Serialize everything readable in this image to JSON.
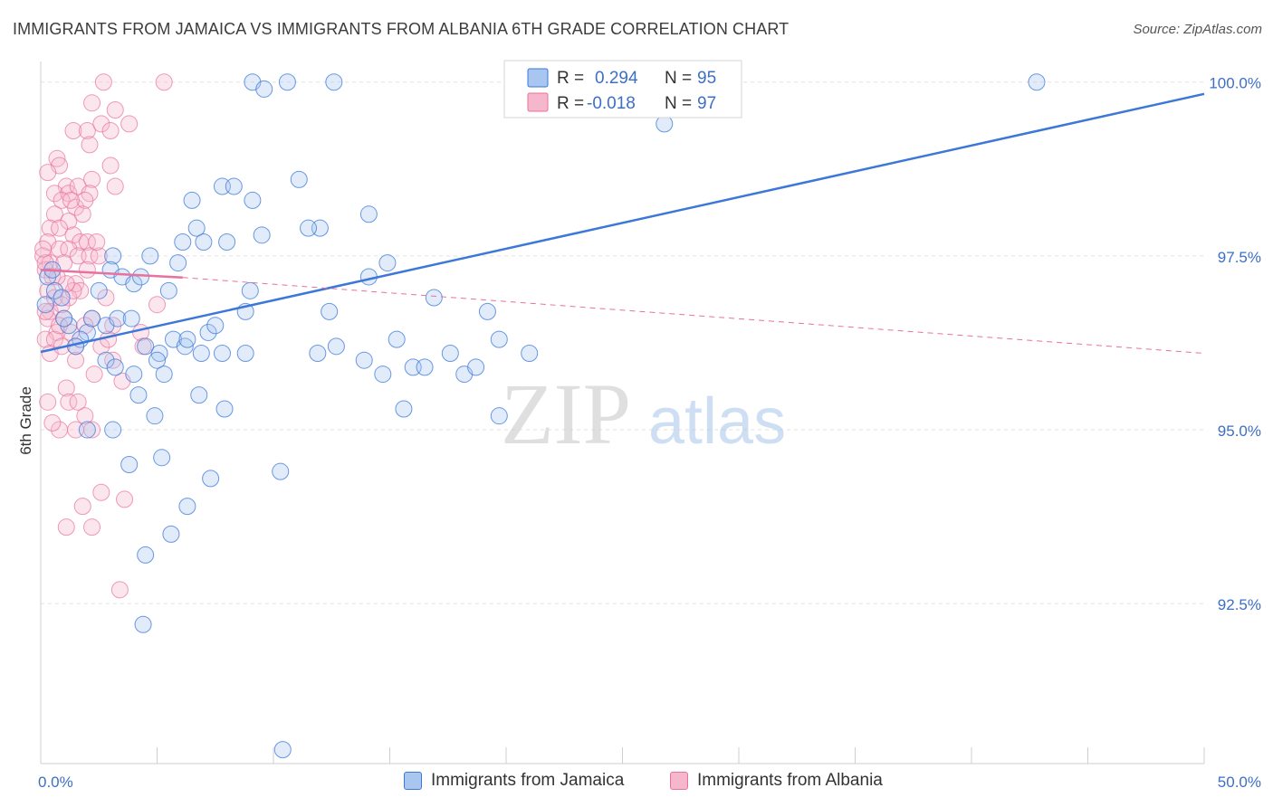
{
  "title": "IMMIGRANTS FROM JAMAICA VS IMMIGRANTS FROM ALBANIA 6TH GRADE CORRELATION CHART",
  "source": "Source: ZipAtlas.com",
  "watermark": {
    "zip": "ZIP",
    "atlas": "atlas"
  },
  "colors": {
    "blue": "#3b78d8",
    "blue_fill": "#a9c6f0",
    "pink": "#e8719d",
    "pink_fill": "#f6b6cb",
    "tick": "#3d6fc4",
    "grid": "#e2e2e2"
  },
  "legend": {
    "rows": [
      {
        "r_label": "R =",
        "r_value": "0.294",
        "n_label": "N =",
        "n_value": "95"
      },
      {
        "r_label": "R =",
        "r_value": "-0.018",
        "n_label": "N =",
        "n_value": "97"
      }
    ]
  },
  "bottom_legend": {
    "series_a": "Immigrants from Jamaica",
    "series_b": "Immigrants from Albania"
  },
  "chart_data": {
    "type": "scatter",
    "title": "IMMIGRANTS FROM JAMAICA VS IMMIGRANTS FROM ALBANIA 6TH GRADE CORRELATION CHART",
    "xlabel": "",
    "ylabel": "6th Grade",
    "xlim": [
      0,
      50
    ],
    "ylim": [
      90.2,
      100.4
    ],
    "x_tick_labels": [
      {
        "value": 0,
        "label": "0.0%"
      },
      {
        "value": 50,
        "label": "50.0%"
      }
    ],
    "y_tick_labels": [
      {
        "value": 100.0,
        "label": "100.0%"
      },
      {
        "value": 97.5,
        "label": "97.5%"
      },
      {
        "value": 95.0,
        "label": "95.0%"
      },
      {
        "value": 92.5,
        "label": "92.5%"
      }
    ],
    "series": [
      {
        "name": "Immigrants from Jamaica",
        "r": 0.294,
        "n": 95,
        "trend": {
          "x": [
            0,
            50
          ],
          "y": [
            96.12,
            99.83
          ],
          "style": "solid"
        },
        "points": [
          [
            9.1,
            100
          ],
          [
            9.6,
            99.9
          ],
          [
            10.6,
            100
          ],
          [
            12.6,
            100
          ],
          [
            20.4,
            100
          ],
          [
            21.7,
            100
          ],
          [
            26.8,
            99.4
          ],
          [
            42.8,
            100
          ],
          [
            7.8,
            98.5
          ],
          [
            9.1,
            98.3
          ],
          [
            8.3,
            98.5
          ],
          [
            11.1,
            98.6
          ],
          [
            14.1,
            98.1
          ],
          [
            6.5,
            98.3
          ],
          [
            12.0,
            97.9
          ],
          [
            11.5,
            97.9
          ],
          [
            6.7,
            97.9
          ],
          [
            8.0,
            97.7
          ],
          [
            9.5,
            97.8
          ],
          [
            6.1,
            97.7
          ],
          [
            7.0,
            97.7
          ],
          [
            4.7,
            97.5
          ],
          [
            5.9,
            97.4
          ],
          [
            3.1,
            97.5
          ],
          [
            3.0,
            97.3
          ],
          [
            3.5,
            97.2
          ],
          [
            4.0,
            97.1
          ],
          [
            4.3,
            97.2
          ],
          [
            0.3,
            97.2
          ],
          [
            0.5,
            97.3
          ],
          [
            0.6,
            97.0
          ],
          [
            0.9,
            96.9
          ],
          [
            0.2,
            96.8
          ],
          [
            9.0,
            97.0
          ],
          [
            8.8,
            96.7
          ],
          [
            14.9,
            97.4
          ],
          [
            14.1,
            97.2
          ],
          [
            16.9,
            96.9
          ],
          [
            12.4,
            96.7
          ],
          [
            19.2,
            96.7
          ],
          [
            1.2,
            96.5
          ],
          [
            2.0,
            96.4
          ],
          [
            1.7,
            96.3
          ],
          [
            2.8,
            96.5
          ],
          [
            3.3,
            96.6
          ],
          [
            3.9,
            96.6
          ],
          [
            1.5,
            96.2
          ],
          [
            4.5,
            96.2
          ],
          [
            5.7,
            96.3
          ],
          [
            6.2,
            96.2
          ],
          [
            6.3,
            96.3
          ],
          [
            7.2,
            96.4
          ],
          [
            7.5,
            96.5
          ],
          [
            7.8,
            96.1
          ],
          [
            5.1,
            96.1
          ],
          [
            5.0,
            96.0
          ],
          [
            8.8,
            96.1
          ],
          [
            12.7,
            96.2
          ],
          [
            15.3,
            96.3
          ],
          [
            19.7,
            96.3
          ],
          [
            2.8,
            96.0
          ],
          [
            3.2,
            95.9
          ],
          [
            4.0,
            95.8
          ],
          [
            5.3,
            95.8
          ],
          [
            13.9,
            96.0
          ],
          [
            14.7,
            95.8
          ],
          [
            16.0,
            95.9
          ],
          [
            16.5,
            95.9
          ],
          [
            18.2,
            95.8
          ],
          [
            18.7,
            95.9
          ],
          [
            4.2,
            95.5
          ],
          [
            6.8,
            95.5
          ],
          [
            7.9,
            95.3
          ],
          [
            15.6,
            95.3
          ],
          [
            19.7,
            95.2
          ],
          [
            4.9,
            95.2
          ],
          [
            2.0,
            95.0
          ],
          [
            3.1,
            95.0
          ],
          [
            3.8,
            94.5
          ],
          [
            5.2,
            94.6
          ],
          [
            10.3,
            94.4
          ],
          [
            7.3,
            94.3
          ],
          [
            6.3,
            93.9
          ],
          [
            5.6,
            93.5
          ],
          [
            4.5,
            93.2
          ],
          [
            4.4,
            92.2
          ],
          [
            10.4,
            90.4
          ],
          [
            2.5,
            97.0
          ],
          [
            1.0,
            96.6
          ],
          [
            2.2,
            96.6
          ],
          [
            6.9,
            96.1
          ],
          [
            11.9,
            96.1
          ],
          [
            17.6,
            96.1
          ],
          [
            21.0,
            96.1
          ],
          [
            5.5,
            97.0
          ]
        ]
      },
      {
        "name": "Immigrants from Albania",
        "r": -0.018,
        "n": 97,
        "trend_solid": {
          "x": [
            0,
            6.1
          ],
          "y": [
            97.3,
            97.19
          ]
        },
        "trend_dashed": {
          "x": [
            6.1,
            50
          ],
          "y": [
            97.19,
            96.1
          ]
        },
        "points": [
          [
            2.7,
            100
          ],
          [
            5.3,
            100
          ],
          [
            2.2,
            99.7
          ],
          [
            3.2,
            99.6
          ],
          [
            1.4,
            99.3
          ],
          [
            2.0,
            99.3
          ],
          [
            2.6,
            99.4
          ],
          [
            3.8,
            99.4
          ],
          [
            2.1,
            99.1
          ],
          [
            3.0,
            99.3
          ],
          [
            0.7,
            98.9
          ],
          [
            0.8,
            98.8
          ],
          [
            3.0,
            98.8
          ],
          [
            0.3,
            98.7
          ],
          [
            1.1,
            98.5
          ],
          [
            2.2,
            98.6
          ],
          [
            3.2,
            98.5
          ],
          [
            0.6,
            98.4
          ],
          [
            1.2,
            98.4
          ],
          [
            1.6,
            98.5
          ],
          [
            2.1,
            98.4
          ],
          [
            0.9,
            98.3
          ],
          [
            1.5,
            98.2
          ],
          [
            1.9,
            98.3
          ],
          [
            0.6,
            98.1
          ],
          [
            1.2,
            98.0
          ],
          [
            1.8,
            98.1
          ],
          [
            0.4,
            97.9
          ],
          [
            0.8,
            97.9
          ],
          [
            1.4,
            97.8
          ],
          [
            1.7,
            97.7
          ],
          [
            2.0,
            97.7
          ],
          [
            0.3,
            97.7
          ],
          [
            0.8,
            97.6
          ],
          [
            1.2,
            97.6
          ],
          [
            1.6,
            97.5
          ],
          [
            2.1,
            97.5
          ],
          [
            0.1,
            97.5
          ],
          [
            0.4,
            97.4
          ],
          [
            1.0,
            97.4
          ],
          [
            2.0,
            97.3
          ],
          [
            0.2,
            97.3
          ],
          [
            0.5,
            97.2
          ],
          [
            1.5,
            97.1
          ],
          [
            1.7,
            97.0
          ],
          [
            0.3,
            97.0
          ],
          [
            0.6,
            96.9
          ],
          [
            1.2,
            96.9
          ],
          [
            2.8,
            96.9
          ],
          [
            5.0,
            96.8
          ],
          [
            0.4,
            96.7
          ],
          [
            1.0,
            96.6
          ],
          [
            2.2,
            96.6
          ],
          [
            3.1,
            96.5
          ],
          [
            4.3,
            96.4
          ],
          [
            0.3,
            96.6
          ],
          [
            0.7,
            96.4
          ],
          [
            1.3,
            96.4
          ],
          [
            2.6,
            96.2
          ],
          [
            0.2,
            96.3
          ],
          [
            1.5,
            96.2
          ],
          [
            3.1,
            96.0
          ],
          [
            1.5,
            96.0
          ],
          [
            2.3,
            95.8
          ],
          [
            1.1,
            95.6
          ],
          [
            1.2,
            95.4
          ],
          [
            0.3,
            95.4
          ],
          [
            1.9,
            95.2
          ],
          [
            1.5,
            95.0
          ],
          [
            0.8,
            95.0
          ],
          [
            2.2,
            95.0
          ],
          [
            2.6,
            94.1
          ],
          [
            3.6,
            94.0
          ],
          [
            1.8,
            93.9
          ],
          [
            2.2,
            93.6
          ],
          [
            1.1,
            93.6
          ],
          [
            3.4,
            92.7
          ],
          [
            0.2,
            97.4
          ],
          [
            0.1,
            97.6
          ],
          [
            0.6,
            96.3
          ],
          [
            0.9,
            96.8
          ],
          [
            2.5,
            97.5
          ],
          [
            1.4,
            97.0
          ],
          [
            1.1,
            97.1
          ],
          [
            0.4,
            96.1
          ],
          [
            0.8,
            96.5
          ],
          [
            1.9,
            96.5
          ],
          [
            2.9,
            96.3
          ],
          [
            3.5,
            95.7
          ],
          [
            1.6,
            95.4
          ],
          [
            0.5,
            95.1
          ],
          [
            0.2,
            96.7
          ],
          [
            4.4,
            96.2
          ],
          [
            2.4,
            97.7
          ],
          [
            0.7,
            97.2
          ],
          [
            1.3,
            98.3
          ],
          [
            0.9,
            96.2
          ]
        ]
      }
    ]
  }
}
